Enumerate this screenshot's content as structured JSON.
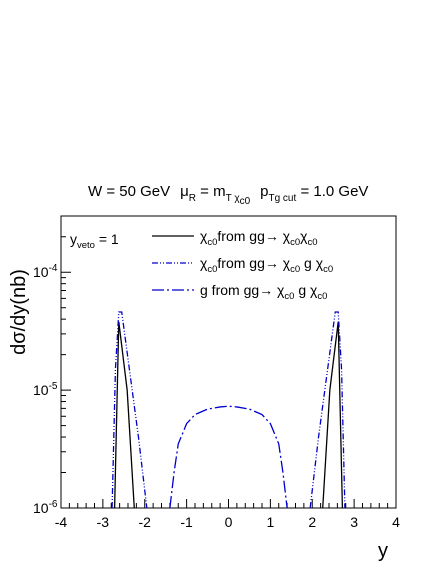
{
  "chart_data": {
    "type": "line",
    "header": {
      "w_text": "W = 50 GeV",
      "mu_main": "μ",
      "mu_sub": "R",
      "mu_eq": " = m",
      "mu_sub2": "T χ",
      "mu_sub3": "c0",
      "pt_main": "p",
      "pt_sub": "Tg cut",
      "pt_eq": " = 1.0 GeV"
    },
    "veto_label": {
      "main": "y",
      "sub": "veto",
      "eq": " = 1"
    },
    "xlabel": "y",
    "ylabel": "dσ/dy(nb)",
    "xlim": [
      -4,
      4
    ],
    "ylim": [
      1e-06,
      0.0003
    ],
    "log_y": true,
    "x_ticks": [
      "-4",
      "-3",
      "-2",
      "-1",
      "0",
      "1",
      "2",
      "3",
      "4"
    ],
    "y_ticks": [
      {
        "value": 1e-06,
        "base": "10",
        "exp": "-6"
      },
      {
        "value": 1e-05,
        "base": "10",
        "exp": "-5"
      },
      {
        "value": 0.0001,
        "base": "10",
        "exp": "-4"
      }
    ],
    "series": [
      {
        "name": "χc0 from gg→ χc0χc0",
        "color": "#000000",
        "dash": "solid",
        "points": [
          [
            -2.25,
            1e-06
          ],
          [
            -2.42,
            1e-05
          ],
          [
            -2.62,
            3.8e-05
          ],
          [
            -2.72,
            1e-06
          ],
          null,
          [
            2.25,
            1e-06
          ],
          [
            2.42,
            1e-05
          ],
          [
            2.62,
            3.8e-05
          ],
          [
            2.72,
            1e-06
          ]
        ]
      },
      {
        "name": "χc0 from gg→ χc0 g χc0",
        "color": "#0000cc",
        "dash": "dashdotdot",
        "points": [
          [
            -2.78,
            1e-06
          ],
          [
            -2.7,
            1.5e-05
          ],
          [
            -2.62,
            4.6e-05
          ],
          [
            -2.55,
            4.6e-05
          ],
          [
            -2.45,
            2.5e-05
          ],
          [
            -2.3,
            1e-05
          ],
          [
            -2.15,
            4e-06
          ],
          [
            -1.95,
            1e-06
          ],
          null,
          [
            1.95,
            1e-06
          ],
          [
            2.15,
            4e-06
          ],
          [
            2.3,
            1e-05
          ],
          [
            2.45,
            2.5e-05
          ],
          [
            2.55,
            4.6e-05
          ],
          [
            2.62,
            4.6e-05
          ],
          [
            2.7,
            1.5e-05
          ],
          [
            2.78,
            1e-06
          ]
        ]
      },
      {
        "name": "g from gg→ χc0 g χc0",
        "color": "#0000cc",
        "dash": "dashdot",
        "points": [
          [
            -1.4,
            1e-06
          ],
          [
            -1.3,
            2e-06
          ],
          [
            -1.2,
            3.5e-06
          ],
          [
            -1.0,
            5.2e-06
          ],
          [
            -0.8,
            6.2e-06
          ],
          [
            -0.5,
            6.9e-06
          ],
          [
            -0.2,
            7.2e-06
          ],
          [
            0,
            7.3e-06
          ],
          [
            0.2,
            7.2e-06
          ],
          [
            0.5,
            6.9e-06
          ],
          [
            0.8,
            6.2e-06
          ],
          [
            1.0,
            5.2e-06
          ],
          [
            1.2,
            3.5e-06
          ],
          [
            1.3,
            2e-06
          ],
          [
            1.4,
            1e-06
          ]
        ]
      }
    ],
    "legend": [
      {
        "main": "χ",
        "sub": "c0",
        "mid": "from gg→ χ",
        "sub2": "c0",
        "mid2": "χ",
        "sub3": "c0",
        "tail": ""
      },
      {
        "main": "χ",
        "sub": "c0",
        "mid": "from  gg→ χ",
        "sub2": "c0",
        "mid2": " g χ",
        "sub3": "c0",
        "tail": ""
      },
      {
        "main": "g from gg→ χ",
        "sub": "c0",
        "mid": " g χ",
        "sub2": "c0",
        "mid2": "",
        "sub3": "",
        "tail": ""
      }
    ]
  }
}
